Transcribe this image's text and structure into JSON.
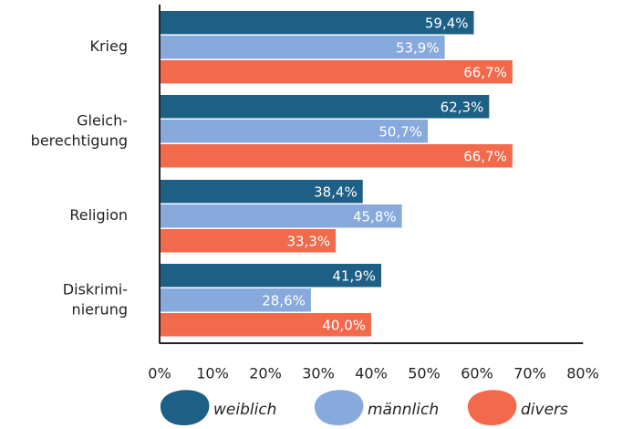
{
  "chart_data": {
    "type": "hbar",
    "categories": [
      "Krieg",
      "Gleich-\nberechtigung",
      "Religion",
      "Diskrimi-\nnierung"
    ],
    "series": [
      {
        "name": "weiblich",
        "color": "#1d5f85",
        "values": [
          59.4,
          62.3,
          38.4,
          41.9
        ],
        "value_labels": [
          "59,4%",
          "62,3%",
          "38,4%",
          "41,9%"
        ]
      },
      {
        "name": "männlich",
        "color": "#87a9dc",
        "values": [
          53.9,
          50.7,
          45.8,
          28.6
        ],
        "value_labels": [
          "53,9%",
          "50,7%",
          "45,8%",
          "28,6%"
        ]
      },
      {
        "name": "divers",
        "color": "#f26a4b",
        "values": [
          66.7,
          66.7,
          33.3,
          40.0
        ],
        "value_labels": [
          "66,7%",
          "66,7%",
          "33,3%",
          "40,0%"
        ]
      }
    ],
    "xlim": [
      0,
      80
    ],
    "xticks": [
      {
        "value": 0,
        "label": "0%"
      },
      {
        "value": 10,
        "label": "10%"
      },
      {
        "value": 20,
        "label": "20%"
      },
      {
        "value": 30,
        "label": "30%"
      },
      {
        "value": 40,
        "label": "40%"
      },
      {
        "value": 50,
        "label": "50%"
      },
      {
        "value": 60,
        "label": "60%"
      },
      {
        "value": 70,
        "label": "70%"
      },
      {
        "value": 80,
        "label": "80%"
      }
    ],
    "legend": "bottom"
  }
}
